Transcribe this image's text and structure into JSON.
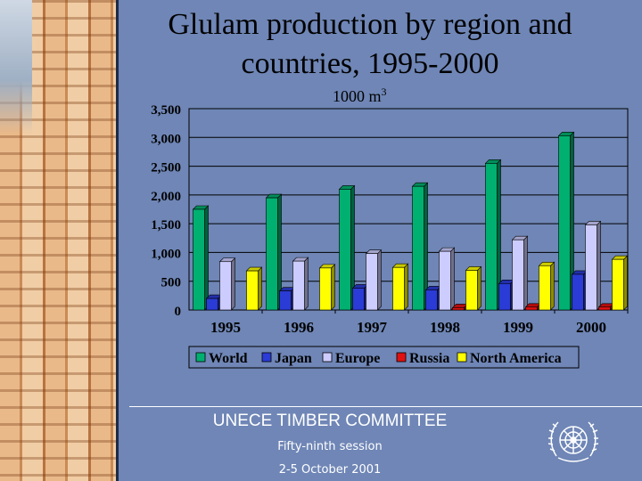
{
  "slide": {
    "title_line1": "Glulam production by region and",
    "title_line2": "countries, 1995-2000",
    "footer_org": "UNECE TIMBER COMMITTEE",
    "footer_session": "Fifty-ninth session",
    "footer_dates": "2-5 October 2001"
  },
  "chart_data": {
    "type": "bar",
    "title": "Glulam production by region and countries, 1995-2000",
    "unit_label": "1000 m",
    "unit_superscript": "3",
    "categories": [
      "1995",
      "1996",
      "1997",
      "1998",
      "1999",
      "2000"
    ],
    "ylim": [
      0,
      3500
    ],
    "yticks": [
      "0",
      "500",
      "1,000",
      "1,500",
      "2,000",
      "2,500",
      "3,000",
      "3,500"
    ],
    "grid": true,
    "legend_position": "bottom",
    "series": [
      {
        "name": "World",
        "color": "#00b070",
        "values": [
          1750,
          1950,
          2100,
          2150,
          2550,
          3030
        ]
      },
      {
        "name": "Japan",
        "color": "#2a3bd6",
        "values": [
          200,
          330,
          380,
          350,
          460,
          620
        ]
      },
      {
        "name": "Europe",
        "color": "#ccccff",
        "values": [
          840,
          850,
          980,
          1020,
          1220,
          1480
        ]
      },
      {
        "name": "Russia",
        "color": "#e01010",
        "values": [
          0,
          0,
          0,
          40,
          50,
          50
        ]
      },
      {
        "name": "North America",
        "color": "#ffff00",
        "values": [
          680,
          730,
          740,
          690,
          770,
          880
        ]
      }
    ]
  }
}
